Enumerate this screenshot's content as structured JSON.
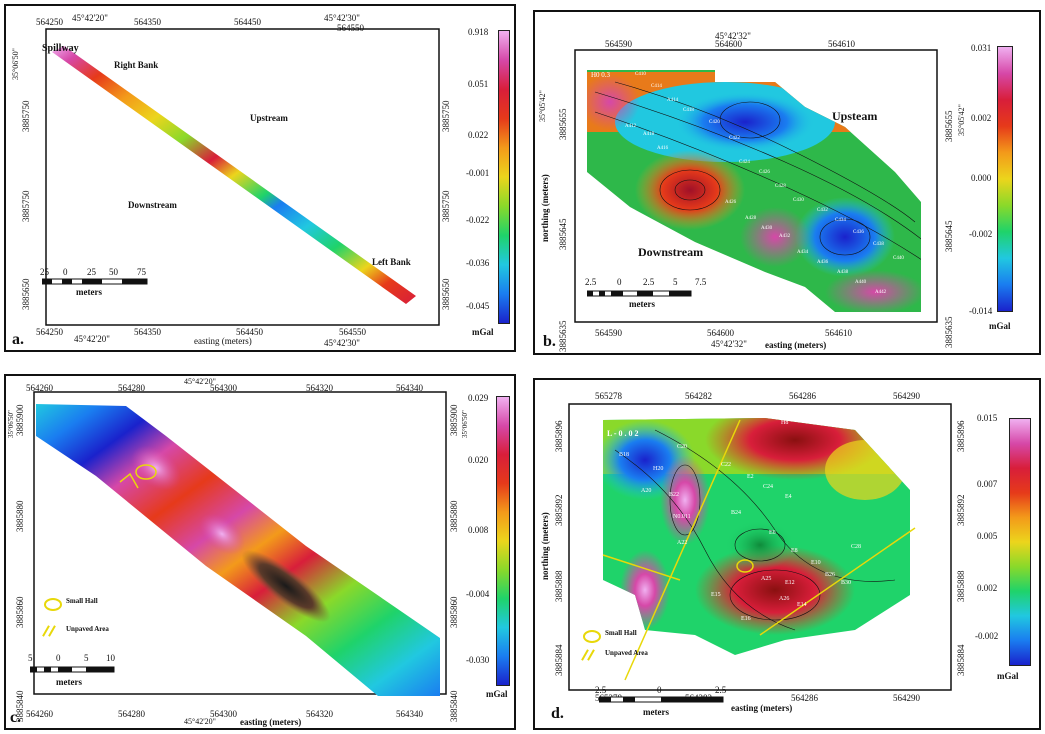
{
  "panels": {
    "a": {
      "letter": "a.",
      "top_ticks": [
        "564250",
        "45°42'20\"",
        "564350",
        "564450",
        "45°42'30\"",
        "564550"
      ],
      "bottom_ticks": [
        "564250",
        "45°42'20\"",
        "564350",
        "564450",
        "564550",
        "45°42'30\""
      ],
      "x_title": "easting (meters)",
      "left_ticks": [
        "35°06'50\"",
        "3885750",
        "3885750",
        "3885650"
      ],
      "right_ticks": [
        "3885750",
        "3885750",
        "3885650"
      ],
      "labels": {
        "spillway": "Spillway",
        "right_bank": "Right Bank",
        "upstream": "Upstream",
        "downstream": "Downstream",
        "left_bank": "Left Bank"
      },
      "scale": {
        "ticks": [
          "25",
          "0",
          "25",
          "50",
          "75"
        ],
        "unit": "meters"
      },
      "colorbar": {
        "ticks": [
          "0.918",
          "0.051",
          "0.022",
          "-0.001",
          "-0.022",
          "-0.036",
          "-0.045"
        ],
        "unit": "mGal"
      }
    },
    "b": {
      "letter": "b.",
      "top_coord": "45°42'32\"",
      "top_ticks": [
        "564590",
        "564600",
        "564610"
      ],
      "bottom_ticks": [
        "564590",
        "564600",
        "564610"
      ],
      "bottom_coord": "45°42'32\"",
      "x_title": "easting (meters)",
      "y_title": "northing (meters)",
      "left_ticks": [
        "35°05'42\"",
        "3885655",
        "3885645",
        "3885635"
      ],
      "right_ticks": [
        "3885655",
        "35°05'42\"",
        "3885645",
        "3885635"
      ],
      "labels": {
        "upstream": "Upsteam",
        "downstream": "Downstream",
        "ho": "H0 0.3"
      },
      "stations": [
        "C410",
        "A412",
        "C414",
        "A414",
        "A416",
        "A418",
        "C418",
        "C420",
        "C422",
        "C424",
        "C426",
        "C428",
        "C430",
        "A426",
        "A428",
        "A430",
        "A432",
        "C432",
        "C434",
        "C436",
        "A434",
        "C438",
        "A436",
        "A438",
        "A440",
        "A442",
        "C440"
      ],
      "scale": {
        "ticks": [
          "2.5",
          "0",
          "2.5",
          "5",
          "7.5"
        ],
        "unit": "meters"
      },
      "colorbar": {
        "ticks": [
          "0.031",
          "0.002",
          "0.000",
          "-0.002",
          "-0.014"
        ],
        "unit": "mGal"
      }
    },
    "c": {
      "letter": "c.",
      "top_ticks": [
        "564260",
        "564280",
        "45°42'20\"",
        "564300",
        "564320",
        "564340"
      ],
      "bottom_ticks": [
        "564260",
        "564280",
        "45°42'20\"",
        "564300",
        "564320",
        "564340"
      ],
      "x_title": "easting (meters)",
      "left_ticks": [
        "35°06'50\"",
        "3885900",
        "3885880",
        "3885860",
        "3885840"
      ],
      "right_ticks": [
        "3885900",
        "35°06'50\"",
        "3885880",
        "3885860",
        "3885840"
      ],
      "legend": {
        "small_hall": "Small Hall",
        "unpaved": "Unpaved Area"
      },
      "scale": {
        "ticks": [
          "5",
          "0",
          "5",
          "10"
        ],
        "unit": "meters"
      },
      "colorbar": {
        "ticks": [
          "0.029",
          "0.020",
          "0.008",
          "-0.004",
          "-0.030"
        ],
        "unit": "mGal"
      }
    },
    "d": {
      "letter": "d.",
      "top_ticks": [
        "565278",
        "564282",
        "564286",
        "564290"
      ],
      "bottom_ticks": [
        "565278",
        "564282",
        "564286",
        "564290"
      ],
      "x_title": "easting (meters)",
      "y_title": "northing (meters)",
      "left_ticks": [
        "3885896",
        "3885892",
        "3885888",
        "3885884"
      ],
      "right_ticks": [
        "3885896",
        "3885892",
        "3885888",
        "3885884"
      ],
      "map_labels": {
        "l_value": "L - 0 . 0 2",
        "h8": "H8",
        "b18": "B18",
        "h20": "H20",
        "b22": "B22",
        "c20": "C20",
        "c22": "C22",
        "e2": "E2",
        "c24": "C24",
        "e4": "E4",
        "a20": "A20",
        "a22": "A22",
        "b24": "B24",
        "e6": "E6",
        "e8": "E8",
        "e10": "E10",
        "e12": "E12",
        "e14": "E14",
        "e15": "E15",
        "e16": "E16",
        "a25": "A25",
        "a26": "A26",
        "b26": "B26",
        "b30": "B30",
        "c28": "C28",
        "n011": "N0.011"
      },
      "legend": {
        "small_hall": "Small Hall",
        "unpaved": "Unpaved Area"
      },
      "scale": {
        "ticks": [
          "2.5",
          "0",
          "2.5"
        ],
        "unit": "meters"
      },
      "colorbar": {
        "ticks": [
          "0.015",
          "0.007",
          "0.005",
          "0.002",
          "-0.002"
        ],
        "unit": "mGal"
      }
    }
  },
  "colors": {
    "ramp": [
      "#1a22cc",
      "#1a7df0",
      "#21c8e0",
      "#1fd36a",
      "#8ad92a",
      "#ecd51c",
      "#f39a1a",
      "#e63a1a",
      "#d81e3a",
      "#d648a8",
      "#f0b0f0"
    ],
    "legend_yellow": "#e8d80a"
  }
}
